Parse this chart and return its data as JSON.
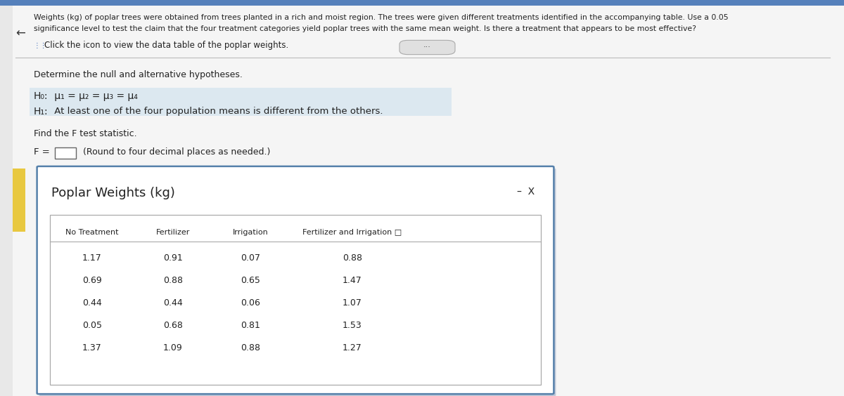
{
  "bg_color": "#e8e8e8",
  "page_bg": "#f5f5f5",
  "header_text_line1": "Weights (kg) of poplar trees were obtained from trees planted in a rich and moist region. The trees were given different treatments identified in the accompanying table. Use a 0.05",
  "header_text_line2": "significance level to test the claim that the four treatment categories yield poplar trees with the same mean weight. Is there a treatment that appears to be most effective?",
  "click_text": "  Click the icon to view the data table of the poplar weights.",
  "determine_text": "Determine the null and alternative hypotheses.",
  "h0_label": "H₀:",
  "h0_formula": " μ₁ = μ₂ = μ₃ = μ₄",
  "h1_label": "H₁:",
  "h1_rest": " At least one of the four population means is different from the others.",
  "find_text": "Find the F test statistic.",
  "f_label": "F =",
  "f_note": " (Round to four decimal places as needed.)",
  "dialog_title": "Poplar Weights (kg)",
  "dialog_bg": "#ffffff",
  "dialog_border_color": "#5580aa",
  "dialog_shadow": "#c0c8d8",
  "table_headers": [
    "No Treatment",
    "Fertilizer",
    "Irrigation",
    "Fertilizer and Irrigation"
  ],
  "table_data": [
    [
      "1.17",
      "0.91",
      "0.07",
      "0.88"
    ],
    [
      "0.69",
      "0.88",
      "0.65",
      "1.47"
    ],
    [
      "0.44",
      "0.44",
      "0.06",
      "1.07"
    ],
    [
      "0.05",
      "0.68",
      "0.81",
      "1.53"
    ],
    [
      "1.37",
      "1.09",
      "0.88",
      "1.27"
    ]
  ],
  "minus_x_text": "–  X",
  "left_arrow": "←",
  "ellipsis_text": "···",
  "yellow_color": "#e8c840",
  "h0_h1_bg": "#dce8f0",
  "grid_line_color": "#cccccc",
  "text_color": "#222222",
  "blue_top_bar": "#5580bb"
}
